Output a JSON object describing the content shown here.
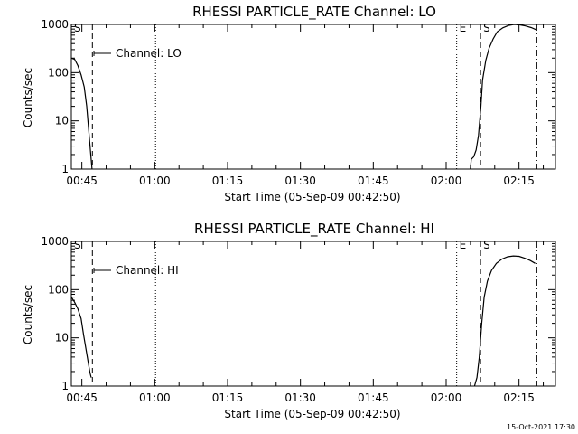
{
  "chart_data": [
    {
      "type": "line",
      "title": "RHESSI PARTICLE_RATE Channel: LO",
      "xlabel": "Start Time (05-Sep-09 00:42:50)",
      "ylabel": "Counts/sec",
      "yscale": "log",
      "ylim": [
        1,
        1000
      ],
      "xlim": [
        "00:42:50",
        "02:22:30"
      ],
      "x_ticks": [
        "00:45",
        "01:00",
        "01:15",
        "01:30",
        "01:45",
        "02:00",
        "02:15"
      ],
      "y_ticks": [
        "1",
        "10",
        "100",
        "1000"
      ],
      "legend": "Channel: LO",
      "markers": [
        {
          "label": "S",
          "time": "00:42:50",
          "style": "dash-dot"
        },
        {
          "label": "",
          "time": "00:47:10",
          "style": "dashed"
        },
        {
          "label": "",
          "time": "01:00:10",
          "style": "dotted"
        },
        {
          "label": "E",
          "time": "02:02:10",
          "style": "dotted"
        },
        {
          "label": "S",
          "time": "02:07:05",
          "style": "dashed"
        },
        {
          "label": "",
          "time": "02:18:40",
          "style": "dash-dot"
        }
      ],
      "series": [
        {
          "segments": [
            [
              [
                "00:42:50",
                200
              ],
              [
                "00:43:30",
                190
              ],
              [
                "00:44:10",
                140
              ],
              [
                "00:44:50",
                90
              ],
              [
                "00:45:30",
                50
              ],
              [
                "00:46:00",
                20
              ],
              [
                "00:46:30",
                5
              ],
              [
                "00:46:50",
                2
              ],
              [
                "00:47:05",
                1
              ]
            ],
            [
              [
                "02:05:00",
                1
              ],
              [
                "02:05:10",
                1.6
              ],
              [
                "02:05:40",
                1.8
              ],
              [
                "02:06:10",
                2.5
              ],
              [
                "02:06:40",
                5
              ],
              [
                "02:07:10",
                20
              ],
              [
                "02:07:30",
                70
              ],
              [
                "02:08:10",
                180
              ],
              [
                "02:08:50",
                320
              ],
              [
                "02:09:40",
                500
              ],
              [
                "02:10:30",
                700
              ],
              [
                "02:11:40",
                850
              ],
              [
                "02:12:50",
                950
              ],
              [
                "02:14:00",
                1000
              ],
              [
                "02:15:10",
                980
              ],
              [
                "02:16:20",
                930
              ],
              [
                "02:17:30",
                860
              ],
              [
                "02:18:30",
                780
              ]
            ]
          ]
        }
      ]
    },
    {
      "type": "line",
      "title": "RHESSI PARTICLE_RATE Channel: HI",
      "xlabel": "Start Time (05-Sep-09 00:42:50)",
      "ylabel": "Counts/sec",
      "yscale": "log",
      "ylim": [
        1,
        1000
      ],
      "xlim": [
        "00:42:50",
        "02:22:30"
      ],
      "x_ticks": [
        "00:45",
        "01:00",
        "01:15",
        "01:30",
        "01:45",
        "02:00",
        "02:15"
      ],
      "y_ticks": [
        "1",
        "10",
        "100",
        "1000"
      ],
      "legend": "Channel: HI",
      "markers": [
        {
          "label": "S",
          "time": "00:42:50",
          "style": "dash-dot"
        },
        {
          "label": "",
          "time": "00:47:10",
          "style": "dashed"
        },
        {
          "label": "",
          "time": "01:00:10",
          "style": "dotted"
        },
        {
          "label": "E",
          "time": "02:02:10",
          "style": "dotted"
        },
        {
          "label": "S",
          "time": "02:07:05",
          "style": "dashed"
        },
        {
          "label": "",
          "time": "02:18:40",
          "style": "dash-dot"
        }
      ],
      "series": [
        {
          "segments": [
            [
              [
                "00:42:50",
                70
              ],
              [
                "00:43:30",
                55
              ],
              [
                "00:44:10",
                40
              ],
              [
                "00:44:50",
                25
              ],
              [
                "00:45:20",
                12
              ],
              [
                "00:45:50",
                6
              ],
              [
                "00:46:20",
                3
              ],
              [
                "00:46:40",
                1.9
              ],
              [
                "00:46:55",
                1.5
              ]
            ],
            [
              [
                "02:05:50",
                1
              ],
              [
                "02:06:20",
                1.5
              ],
              [
                "02:06:50",
                4
              ],
              [
                "02:07:20",
                20
              ],
              [
                "02:07:50",
                70
              ],
              [
                "02:08:30",
                150
              ],
              [
                "02:09:20",
                250
              ],
              [
                "02:10:20",
                350
              ],
              [
                "02:11:30",
                430
              ],
              [
                "02:12:40",
                480
              ],
              [
                "02:13:50",
                500
              ],
              [
                "02:15:00",
                490
              ],
              [
                "02:16:10",
                450
              ],
              [
                "02:17:20",
                400
              ],
              [
                "02:18:20",
                350
              ]
            ]
          ]
        }
      ]
    }
  ],
  "footer_timestamp": "15-Oct-2021 17:30"
}
